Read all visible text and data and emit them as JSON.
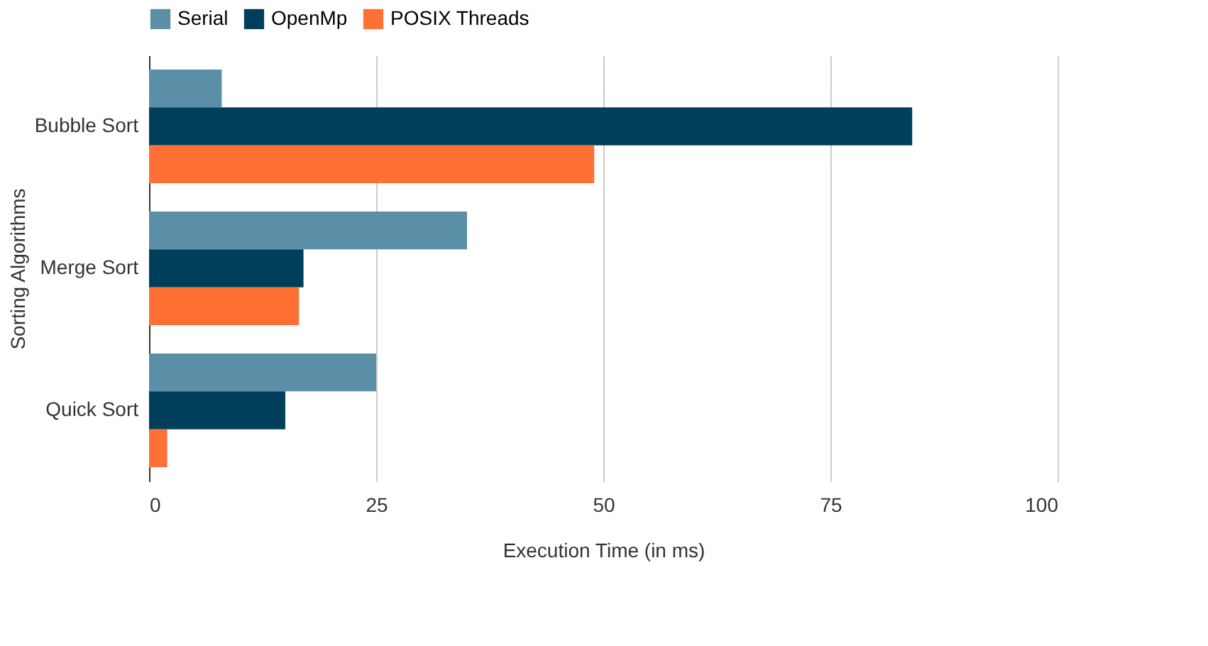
{
  "chart_data": {
    "type": "bar",
    "orientation": "horizontal",
    "xlabel": "Execution Time (in ms)",
    "ylabel": "Sorting Algorithms",
    "categories": [
      "Bubble Sort",
      "Merge Sort",
      "Quick Sort"
    ],
    "series": [
      {
        "name": "Serial",
        "color": "#5b8fa8",
        "values": [
          8,
          35,
          25
        ]
      },
      {
        "name": "OpenMp",
        "color": "#003f5c",
        "values": [
          84,
          17,
          15
        ]
      },
      {
        "name": "POSIX Threads",
        "color": "#ff7034",
        "values": [
          49,
          16.5,
          2
        ]
      }
    ],
    "xlim": [
      0,
      100
    ],
    "xticks": [
      0,
      25,
      50,
      75,
      100
    ],
    "grid": "x",
    "legend": "top"
  }
}
